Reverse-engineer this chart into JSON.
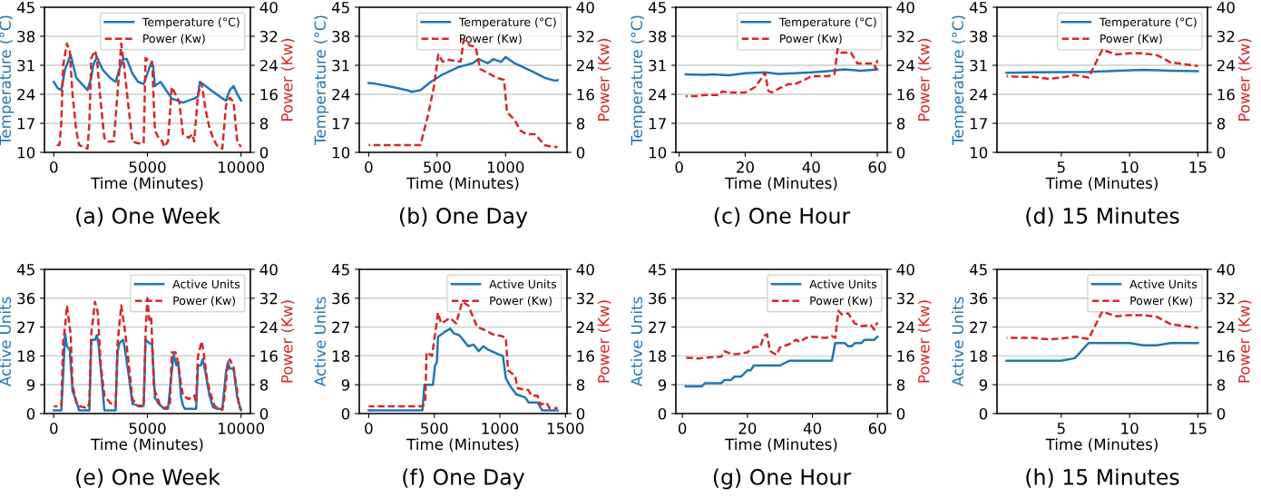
{
  "chart_data": [
    {
      "type": "line",
      "annotations": [
        "(a) One Week"
      ],
      "xlabel": "Time (Minutes)",
      "ylabel": "Temperature (°C)",
      "y2label": "Power (Kw)",
      "xlim": [
        -500,
        10500
      ],
      "xticks": [
        0,
        5000,
        10000
      ],
      "ylim": [
        10,
        45
      ],
      "yticks": [
        10,
        17,
        24,
        31,
        38,
        45
      ],
      "y2lim": [
        0,
        40
      ],
      "y2ticks": [
        0,
        8,
        16,
        24,
        32,
        40
      ],
      "grid": "y",
      "legend": "top right",
      "series": [
        {
          "name": "Temperature (°C)",
          "color": "#1f77b4",
          "line_style": "solid",
          "x": [
            0,
            200,
            400,
            600,
            900,
            1200,
            1500,
            1800,
            2000,
            2100,
            2300,
            2600,
            3000,
            3300,
            3500,
            3700,
            3900,
            4200,
            4500,
            4800,
            5000,
            5200,
            5300,
            5400,
            5700,
            6000,
            6300,
            6600,
            6900,
            7200,
            7500,
            7700,
            7800,
            8100,
            8400,
            8700,
            9000,
            9200,
            9400,
            9600,
            9800,
            10000
          ],
          "values": [
            27,
            25.5,
            25,
            30,
            33.5,
            28,
            26.5,
            25,
            28,
            31,
            33,
            30,
            28,
            27,
            30,
            32.5,
            32.5,
            29,
            27,
            26.5,
            29,
            31.5,
            31,
            26,
            27,
            25,
            23,
            22.5,
            22,
            22.5,
            23,
            23.5,
            27,
            26,
            25,
            24,
            23,
            22.5,
            25,
            26,
            24,
            22.5
          ]
        },
        {
          "name": "Power (Kw)",
          "color": "#d62728",
          "line_style": "dashed",
          "axis": "y2",
          "x": [
            0,
            300,
            400,
            500,
            700,
            850,
            1000,
            1200,
            1350,
            1600,
            1800,
            1900,
            2000,
            2200,
            2300,
            2500,
            2700,
            2900,
            3200,
            3400,
            3600,
            3750,
            4000,
            4200,
            4500,
            4800,
            4900,
            5100,
            5250,
            5400,
            5600,
            5800,
            5900,
            6100,
            6300,
            6500,
            6700,
            6900,
            7200,
            7400,
            7500,
            7700,
            7900,
            8100,
            8300,
            8500,
            8700,
            9000,
            9200,
            9400,
            9600,
            9800,
            10000
          ],
          "values": [
            2,
            2,
            8,
            24,
            30,
            28,
            16,
            6,
            2,
            1.5,
            1,
            8,
            26,
            28,
            26,
            14,
            4,
            3,
            3,
            16,
            30,
            24,
            12,
            3,
            2.5,
            2.5,
            26,
            25,
            25,
            6,
            4,
            3,
            1.5,
            3,
            18,
            16,
            14,
            5,
            4,
            5,
            3,
            16,
            19,
            12,
            7,
            4,
            2,
            1,
            13,
            15,
            14,
            3,
            1.5
          ]
        }
      ]
    },
    {
      "type": "line",
      "annotations": [
        "(b) One Day"
      ],
      "xlabel": "Time (Minutes)",
      "ylabel": "Temperature (°C)",
      "y2label": "Power (Kw)",
      "xlim": [
        -69,
        1449
      ],
      "xticks": [
        0,
        500,
        1000
      ],
      "ylim": [
        10,
        45
      ],
      "yticks": [
        10,
        17,
        24,
        31,
        38,
        45
      ],
      "y2lim": [
        0,
        40
      ],
      "y2ticks": [
        0,
        8,
        16,
        24,
        32,
        40
      ],
      "grid": "y",
      "legend": "top right",
      "series": [
        {
          "name": "Temperature (°C)",
          "color": "#1f77b4",
          "line_style": "solid",
          "x": [
            0,
            40,
            170,
            280,
            312,
            378,
            454,
            541,
            650,
            760,
            803,
            869,
            913,
            967,
            1000,
            1066,
            1197,
            1284,
            1360,
            1380
          ],
          "values": [
            26.7,
            26.6,
            25.8,
            25,
            24.6,
            25,
            27,
            28.8,
            30.5,
            31.5,
            32.5,
            31.5,
            32.5,
            31.8,
            33,
            31.5,
            29.5,
            28,
            27.3,
            27.4
          ]
        },
        {
          "name": "Power (Kw)",
          "color": "#d62728",
          "line_style": "dashed",
          "axis": "y2",
          "x": [
            0,
            345,
            378,
            432,
            476,
            509,
            541,
            585,
            672,
            694,
            738,
            782,
            814,
            891,
            934,
            989,
            1011,
            1066,
            1109,
            1153,
            1218,
            1251,
            1284,
            1349,
            1380
          ],
          "values": [
            2,
            2,
            2,
            10,
            18,
            27,
            25,
            25.5,
            25,
            31,
            29.5,
            29,
            23,
            21.5,
            20.5,
            20,
            11,
            9,
            6,
            5,
            5,
            3.5,
            2,
            1.5,
            1.5
          ]
        }
      ]
    },
    {
      "type": "line",
      "annotations": [
        "(c) One Hour"
      ],
      "xlabel": "Time (Minutes)",
      "ylabel": "Temperature (°C)",
      "y2label": "Power (Kw)",
      "xlim": [
        -1,
        63
      ],
      "xticks": [
        0,
        20,
        40,
        60
      ],
      "ylim": [
        10,
        45
      ],
      "yticks": [
        10,
        17,
        24,
        31,
        38,
        45
      ],
      "y2lim": [
        0,
        40
      ],
      "y2ticks": [
        0,
        8,
        16,
        24,
        32,
        40
      ],
      "grid": "y",
      "legend": "top right",
      "series": [
        {
          "name": "Temperature (°C)",
          "color": "#1f77b4",
          "line_style": "solid",
          "x": [
            2,
            8,
            10,
            15,
            20,
            26,
            30,
            35,
            40,
            45,
            50,
            55,
            60
          ],
          "values": [
            28.8,
            28.7,
            28.8,
            28.6,
            29.1,
            29.3,
            28.9,
            29.1,
            29.3,
            29.6,
            30,
            29.7,
            30
          ]
        },
        {
          "name": "Power (Kw)",
          "color": "#d62728",
          "line_style": "dashed",
          "axis": "y2",
          "x": [
            2,
            5,
            8,
            12,
            13,
            15,
            20,
            23,
            25,
            26,
            27,
            28,
            30,
            33,
            35,
            38,
            40,
            45,
            47,
            48,
            49,
            52,
            54,
            56,
            59,
            59.5,
            60
          ],
          "values": [
            15.5,
            15.5,
            15.8,
            15.8,
            16.8,
            16.5,
            16.5,
            18,
            20.5,
            22,
            17,
            16.5,
            17.5,
            18.8,
            18.8,
            20,
            21,
            21,
            21.5,
            28.5,
            27.5,
            27.5,
            24.5,
            24.5,
            24.5,
            23,
            25.5
          ]
        }
      ]
    },
    {
      "type": "line",
      "annotations": [
        "(d) 15 Minutes"
      ],
      "xlabel": "Time (Minutes)",
      "ylabel": "Temperature (°C)",
      "y2label": "Power (Kw)",
      "xlim": [
        0.3,
        15.7
      ],
      "xticks": [
        5,
        10,
        15
      ],
      "ylim": [
        10,
        45
      ],
      "yticks": [
        10,
        17,
        24,
        31,
        38,
        45
      ],
      "y2lim": [
        0,
        40
      ],
      "y2ticks": [
        0,
        8,
        16,
        24,
        32,
        40
      ],
      "grid": "y",
      "legend": "top right",
      "series": [
        {
          "name": "Temperature (°C)",
          "color": "#1f77b4",
          "line_style": "solid",
          "x": [
            1,
            3,
            7,
            11,
            13,
            15
          ],
          "values": [
            29.2,
            29.3,
            29.4,
            29.9,
            29.7,
            29.6
          ]
        },
        {
          "name": "Power (Kw)",
          "color": "#d62728",
          "line_style": "dashed",
          "axis": "y2",
          "x": [
            1,
            2,
            3,
            4,
            5,
            6,
            7,
            8,
            9,
            10,
            11,
            12,
            13,
            14,
            15
          ],
          "values": [
            21,
            20.8,
            20.8,
            20.3,
            20.6,
            21.3,
            20.6,
            28.3,
            27,
            27.3,
            27.3,
            26.8,
            24.8,
            24.3,
            23.8
          ]
        }
      ]
    },
    {
      "type": "line",
      "annotations": [
        "(e) One Week"
      ],
      "xlabel": "Time (Minutes)",
      "ylabel": "Active Units",
      "y2label": "Power (Kw)",
      "xlim": [
        -500,
        10500
      ],
      "xticks": [
        0,
        5000,
        10000
      ],
      "ylim": [
        0,
        45
      ],
      "yticks": [
        0,
        9,
        18,
        27,
        36,
        45
      ],
      "y2lim": [
        0,
        40
      ],
      "y2ticks": [
        0,
        8,
        16,
        24,
        32,
        40
      ],
      "grid": "y",
      "legend": "top right",
      "series": [
        {
          "name": "Active Units",
          "color": "#1f77b4",
          "line_style": "solid",
          "x": [
            0,
            400,
            500,
            600,
            700,
            850,
            1000,
            1200,
            1350,
            1900,
            2000,
            2200,
            2300,
            2400,
            2600,
            2700,
            3300,
            3400,
            3500,
            3700,
            3800,
            4000,
            4200,
            4500,
            4800,
            4900,
            5100,
            5250,
            5400,
            5600,
            5900,
            6100,
            6300,
            6400,
            6550,
            6650,
            6800,
            6900,
            7000,
            7600,
            7700,
            7850,
            7950,
            8100,
            8300,
            8500,
            8700,
            9000,
            9200,
            9300,
            9400,
            9600,
            9800,
            10000
          ],
          "values": [
            1,
            1,
            12,
            25,
            21,
            20,
            7,
            4,
            1,
            1,
            23,
            23,
            24.5,
            21,
            8,
            1,
            1,
            19,
            22,
            23,
            20,
            12,
            3,
            2.5,
            2.5,
            23,
            22,
            21.5,
            5,
            3,
            1.5,
            1.5,
            13,
            18.5,
            15,
            16,
            5,
            2.5,
            1.5,
            1.5,
            15,
            15,
            17,
            13,
            6,
            2,
            1.5,
            1.5,
            13,
            16,
            14,
            14,
            5,
            1
          ]
        },
        {
          "name": "Power (Kw)",
          "color": "#d62728",
          "line_style": "dashed",
          "axis": "y2",
          "x": [
            0,
            400,
            500,
            600,
            700,
            900,
            1000,
            1200,
            1400,
            1800,
            1900,
            2000,
            2200,
            2350,
            2500,
            2700,
            3000,
            3300,
            3400,
            3600,
            3800,
            4000,
            4200,
            4500,
            4800,
            4900,
            5000,
            5100,
            5200,
            5350,
            5500,
            5700,
            5900,
            6200,
            6300,
            6500,
            6600,
            6800,
            6900,
            7200,
            7500,
            7600,
            7700,
            7900,
            8000,
            8200,
            8400,
            8600,
            9000,
            9100,
            9300,
            9400,
            9600,
            9800,
            9900,
            10000
          ],
          "values": [
            2,
            2,
            20,
            24,
            30,
            22,
            8,
            3,
            2,
            1.5,
            3,
            22,
            31,
            28,
            14,
            5,
            3,
            2,
            19,
            30,
            23,
            14,
            4,
            2,
            2,
            22,
            32,
            26,
            27,
            7,
            5,
            2,
            1.5,
            2,
            17,
            17,
            15,
            8,
            5,
            4,
            5,
            3,
            16,
            20,
            17,
            9,
            5,
            2,
            1,
            4,
            14,
            15,
            13,
            6,
            2,
            1
          ]
        }
      ]
    },
    {
      "type": "line",
      "annotations": [
        "(f) One Day"
      ],
      "xlabel": "Time (Minutes)",
      "ylabel": "Active Units",
      "y2label": "Power (Kw)",
      "xlim": [
        -72,
        1512
      ],
      "xticks": [
        0,
        500,
        1000,
        1500
      ],
      "ylim": [
        0,
        45
      ],
      "yticks": [
        0,
        9,
        18,
        27,
        36,
        45
      ],
      "y2lim": [
        0,
        40
      ],
      "y2ticks": [
        0,
        8,
        16,
        24,
        32,
        40
      ],
      "grid": "y",
      "legend": "top right",
      "series": [
        {
          "name": "Active Units",
          "color": "#1f77b4",
          "line_style": "solid",
          "x": [
            0,
            410,
            425,
            448,
            490,
            506,
            520,
            529,
            580,
            621,
            650,
            690,
            759,
            800,
            839,
            874,
            908,
            989,
            1023,
            1046,
            1080,
            1126,
            1195,
            1218,
            1287,
            1322,
            1440
          ],
          "values": [
            1,
            1,
            9,
            9,
            9,
            15,
            16,
            24,
            25.5,
            26.5,
            25,
            24.5,
            21,
            21.5,
            19.5,
            21,
            20,
            18.5,
            18,
            11,
            8.5,
            6,
            5,
            3.5,
            3.5,
            1,
            1
          ]
        },
        {
          "name": "Power (Kw)",
          "color": "#d62728",
          "line_style": "dashed",
          "axis": "y2",
          "x": [
            0,
            414,
            432,
            441,
            483,
            529,
            552,
            621,
            667,
            713,
            759,
            828,
            897,
            943,
            1011,
            1046,
            1062,
            1115,
            1138,
            1218,
            1241,
            1287,
            1310,
            1356,
            1379,
            1440
          ],
          "values": [
            2,
            2,
            4,
            17,
            16,
            28,
            25,
            26.5,
            25,
            31,
            30,
            24,
            23,
            22,
            21.5,
            21,
            12,
            10.5,
            7,
            6.5,
            5,
            5,
            2.5,
            3,
            1.5,
            1.5
          ]
        }
      ]
    },
    {
      "type": "line",
      "annotations": [
        "(g) One Hour"
      ],
      "xlabel": "Time (Minutes)",
      "ylabel": "Active Units",
      "y2label": "Power (Kw)",
      "xlim": [
        -2,
        63
      ],
      "xticks": [
        0,
        20,
        40,
        60
      ],
      "ylim": [
        0,
        45
      ],
      "yticks": [
        0,
        9,
        18,
        27,
        36,
        45
      ],
      "y2lim": [
        0,
        40
      ],
      "y2ticks": [
        0,
        8,
        16,
        24,
        32,
        40
      ],
      "grid": "y",
      "legend": "top right",
      "series": [
        {
          "name": "Active Units",
          "color": "#1f77b4",
          "line_style": "solid",
          "x": [
            1,
            6,
            7,
            12,
            13,
            15,
            16,
            18,
            20,
            21,
            22,
            30,
            33,
            46,
            47,
            50,
            51,
            52,
            53,
            55,
            56,
            59,
            60
          ],
          "values": [
            8.5,
            8.5,
            9.5,
            9.5,
            10.5,
            10.5,
            11.5,
            11.5,
            13.5,
            13.5,
            15,
            15,
            16.5,
            16.5,
            22,
            22,
            21,
            21,
            22,
            22,
            23,
            23,
            24
          ]
        },
        {
          "name": "Power (Kw)",
          "color": "#d62728",
          "line_style": "dashed",
          "axis": "y2",
          "x": [
            1,
            5,
            7,
            12,
            13,
            15,
            17,
            20,
            22,
            24,
            25,
            26,
            27,
            29,
            30,
            33,
            35,
            36,
            38,
            40,
            44,
            46,
            47,
            48,
            49,
            51,
            53,
            55,
            58,
            59,
            60
          ],
          "values": [
            15.5,
            15.3,
            15.5,
            15.8,
            17.3,
            16.5,
            16.5,
            17,
            18.5,
            18.5,
            21.5,
            22,
            17.3,
            16.3,
            18.3,
            19.3,
            20.5,
            19.8,
            21,
            21.3,
            21,
            21.5,
            21,
            28.5,
            27.5,
            27.8,
            25,
            24.3,
            24.5,
            23.3,
            25.3
          ]
        }
      ]
    },
    {
      "type": "line",
      "annotations": [
        "(h) 15 Minutes"
      ],
      "xlabel": "Time (Minutes)",
      "ylabel": "Active Units",
      "y2label": "Power (Kw)",
      "xlim": [
        0.3,
        15.7
      ],
      "xticks": [
        5,
        10,
        15
      ],
      "ylim": [
        0,
        45
      ],
      "yticks": [
        0,
        9,
        18,
        27,
        36,
        45
      ],
      "y2lim": [
        0,
        40
      ],
      "y2ticks": [
        0,
        8,
        16,
        24,
        32,
        40
      ],
      "grid": "y",
      "legend": "top right",
      "series": [
        {
          "name": "Active Units",
          "color": "#1f77b4",
          "line_style": "solid",
          "x": [
            1,
            5,
            6,
            7,
            10,
            11,
            12,
            13,
            15
          ],
          "values": [
            16.5,
            16.5,
            17.3,
            22,
            22,
            21.3,
            21.3,
            22,
            22
          ]
        },
        {
          "name": "Power (Kw)",
          "color": "#d62728",
          "line_style": "dashed",
          "axis": "y2",
          "x": [
            1,
            3,
            4,
            5,
            6,
            7,
            8,
            9,
            10,
            11,
            12,
            13,
            14,
            15
          ],
          "values": [
            21,
            21,
            20.6,
            20.8,
            21.3,
            20.7,
            28.3,
            27,
            27.3,
            27.3,
            26.8,
            24.8,
            24.3,
            23.8
          ]
        }
      ]
    }
  ]
}
